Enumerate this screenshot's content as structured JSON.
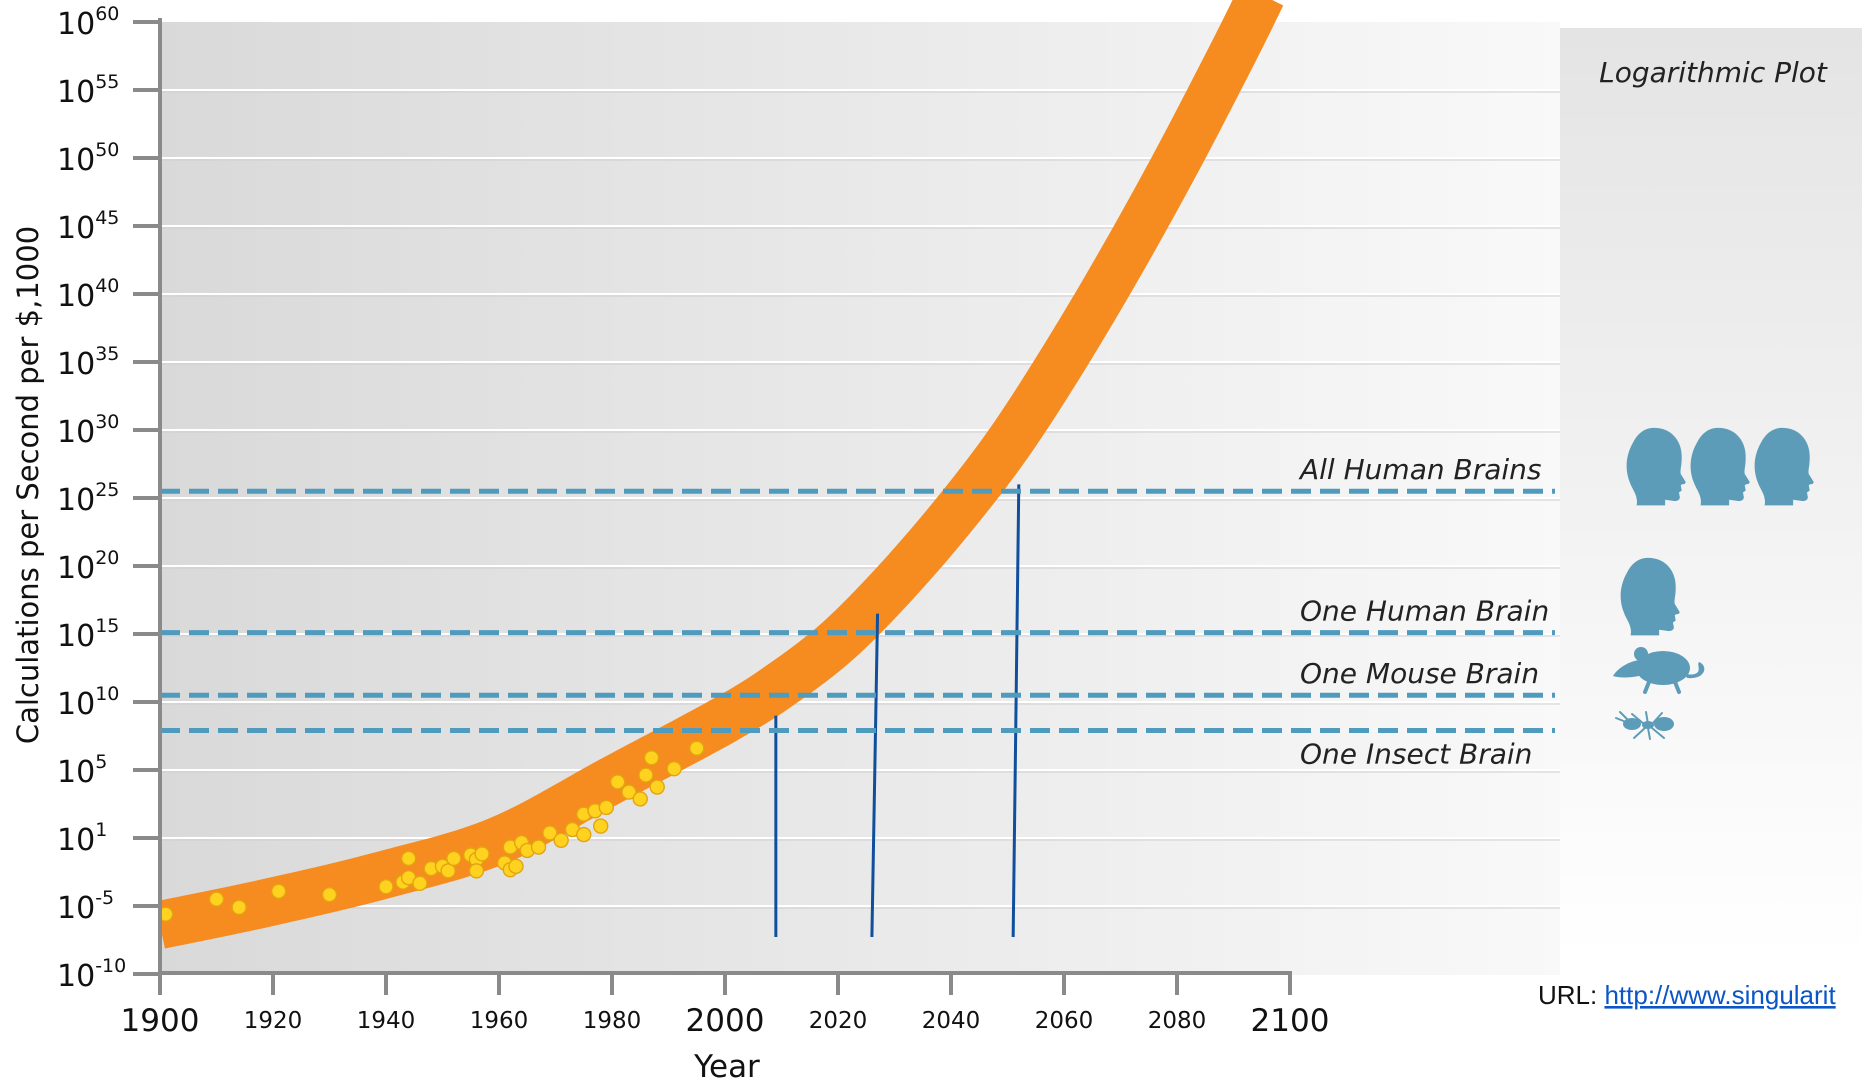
{
  "chart_data": {
    "type": "scatter",
    "title": "",
    "panel_title": "Logarithmic Plot",
    "xlabel": "Year",
    "ylabel": "Calculations per Second per $,1000",
    "y_scale": "log",
    "xlim": [
      1900,
      2100
    ],
    "x_ticks": [
      {
        "label": "1900",
        "major": true
      },
      {
        "label": "1920",
        "major": false
      },
      {
        "label": "1940",
        "major": false
      },
      {
        "label": "1960",
        "major": false
      },
      {
        "label": "1980",
        "major": false
      },
      {
        "label": "2000",
        "major": true
      },
      {
        "label": "2020",
        "major": false
      },
      {
        "label": "2040",
        "major": false
      },
      {
        "label": "2060",
        "major": false
      },
      {
        "label": "2080",
        "major": false
      },
      {
        "label": "2100",
        "major": true
      }
    ],
    "y_ticks": [
      {
        "base": "10",
        "exp": "60"
      },
      {
        "base": "10",
        "exp": "55"
      },
      {
        "base": "10",
        "exp": "50"
      },
      {
        "base": "10",
        "exp": "45"
      },
      {
        "base": "10",
        "exp": "40"
      },
      {
        "base": "10",
        "exp": "35"
      },
      {
        "base": "10",
        "exp": "30"
      },
      {
        "base": "10",
        "exp": "25"
      },
      {
        "base": "10",
        "exp": "20"
      },
      {
        "base": "10",
        "exp": "15"
      },
      {
        "base": "10",
        "exp": "10"
      },
      {
        "base": "10",
        "exp": "5"
      },
      {
        "base": "10",
        "exp": "1"
      },
      {
        "base": "10",
        "exp": "-5"
      },
      {
        "base": "10",
        "exp": "-10"
      }
    ],
    "thresholds": [
      {
        "label": "All Human Brains",
        "level": 25.5,
        "icon": "three-human-heads-icon"
      },
      {
        "label": "One Human Brain",
        "level": 15.1,
        "icon": "human-head-icon"
      },
      {
        "label": "One Mouse Brain",
        "level": 10.5,
        "icon": "mouse-icon"
      },
      {
        "label": "One Insect Brain",
        "level": 7.9,
        "icon": "ant-icon"
      }
    ],
    "trend_band": {
      "color": "#f68b1f",
      "center": [
        [
          1900,
          -6.4
        ],
        [
          1920,
          -4.6
        ],
        [
          1940,
          -2.2
        ],
        [
          1960,
          0.8
        ],
        [
          1980,
          4.4
        ],
        [
          2000,
          8.7
        ],
        [
          2010,
          11.3
        ],
        [
          2020,
          14.5
        ],
        [
          2030,
          18.7
        ],
        [
          2040,
          23.5
        ],
        [
          2050,
          28.9
        ],
        [
          2060,
          35.3
        ],
        [
          2070,
          42.3
        ],
        [
          2080,
          49.8
        ],
        [
          2090,
          57.8
        ],
        [
          2095,
          62.0
        ]
      ]
    },
    "milestone_lines": [
      {
        "x_bottom": 2009,
        "x_top": 2009,
        "y_top": 9.0
      },
      {
        "x_bottom": 2026,
        "x_top": 2027,
        "y_top": 16.5
      },
      {
        "x_bottom": 2051,
        "x_top": 2052,
        "y_top": 26.0
      }
    ],
    "points": [
      [
        1901,
        -5.6
      ],
      [
        1910,
        -4.4
      ],
      [
        1914,
        -5.1
      ],
      [
        1921,
        -3.7
      ],
      [
        1930,
        -4.0
      ],
      [
        1940,
        -3.3
      ],
      [
        1943,
        -2.9
      ],
      [
        1944,
        -2.5
      ],
      [
        1944,
        -0.8
      ],
      [
        1946,
        -3.0
      ],
      [
        1948,
        -1.7
      ],
      [
        1950,
        -1.5
      ],
      [
        1951,
        -1.9
      ],
      [
        1952,
        -0.8
      ],
      [
        1955,
        -0.5
      ],
      [
        1956,
        -0.9
      ],
      [
        1956,
        -1.9
      ],
      [
        1957,
        -0.4
      ],
      [
        1961,
        -1.2
      ],
      [
        1962,
        0.2
      ],
      [
        1962,
        -1.8
      ],
      [
        1963,
        -1.5
      ],
      [
        1964,
        0.6
      ],
      [
        1965,
        -0.1
      ],
      [
        1967,
        0.2
      ],
      [
        1969,
        1.3
      ],
      [
        1971,
        0.8
      ],
      [
        1973,
        1.5
      ],
      [
        1975,
        1.2
      ],
      [
        1975,
        2.4
      ],
      [
        1977,
        2.6
      ],
      [
        1978,
        1.7
      ],
      [
        1979,
        2.8
      ],
      [
        1981,
        4.3
      ],
      [
        1983,
        3.7
      ],
      [
        1985,
        3.3
      ],
      [
        1986,
        4.7
      ],
      [
        1987,
        5.9
      ],
      [
        1988,
        4.0
      ],
      [
        1991,
        5.1
      ],
      [
        1995,
        6.6
      ]
    ],
    "points_color": "#ffd21f",
    "threshold_color": "#4f9bbd",
    "icon_color": "#5d9cb8",
    "grid": true
  },
  "footer": {
    "url_prefix": "URL: ",
    "url_link": "http://www.singularit"
  }
}
